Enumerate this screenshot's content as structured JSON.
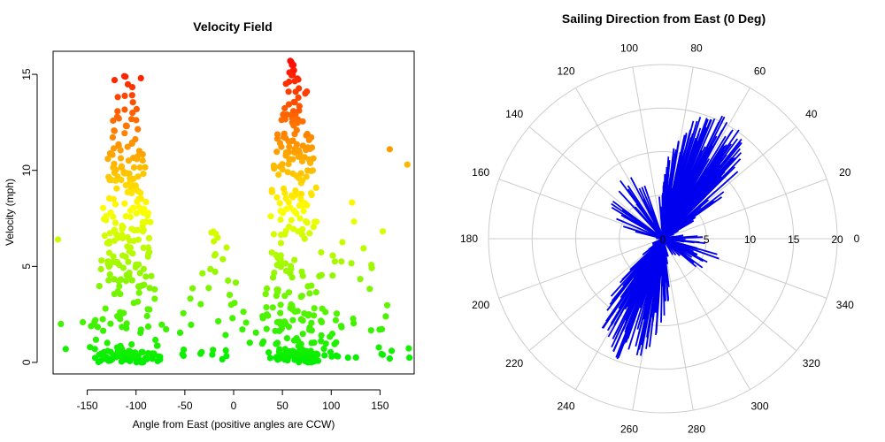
{
  "chart_data": [
    {
      "type": "scatter",
      "title": "Velocity Field",
      "xlabel": "Angle from East (positive angles are CCW)",
      "ylabel": "Velocity (mph)",
      "xlim": [
        -185,
        185
      ],
      "ylim": [
        -0.6,
        16.2
      ],
      "x_ticks": [
        -150,
        -100,
        -50,
        0,
        50,
        100,
        150
      ],
      "x_tick_labels": [
        "-150",
        "-100",
        "-50",
        "0",
        "50",
        "100",
        "150"
      ],
      "y_ticks": [
        0,
        5,
        10,
        15
      ],
      "y_tick_labels": [
        "0",
        "5",
        "10",
        "15"
      ],
      "color_scale": {
        "low": "#00ee00",
        "mid": "#ffff00",
        "high": "#ff0000",
        "min": 0,
        "max": 16
      },
      "clusters": [
        {
          "x_center": -110,
          "x_spread": 22,
          "v_max": 15,
          "count": 300
        },
        {
          "x_center": 62,
          "x_spread": 22,
          "v_max": 15.8,
          "count": 330
        },
        {
          "x_center": -20,
          "x_spread": 25,
          "v_max": 7,
          "count": 40
        },
        {
          "x_center": 130,
          "x_spread": 30,
          "v_max": 9,
          "count": 40
        }
      ],
      "notable_points": [
        {
          "x": 58,
          "y": 15.7
        },
        {
          "x": -112,
          "y": 14.9
        },
        {
          "x": -122,
          "y": 14.7
        },
        {
          "x": -95,
          "y": 14.8
        },
        {
          "x": 75,
          "y": 14.1
        },
        {
          "x": 160,
          "y": 11.1
        },
        {
          "x": 178,
          "y": 10.3
        },
        {
          "x": -177,
          "y": 2.0
        },
        {
          "x": -172,
          "y": 0.7
        },
        {
          "x": -180,
          "y": 6.4
        },
        {
          "x": 160,
          "y": 0.2
        },
        {
          "x": 162,
          "y": 0.6
        }
      ]
    },
    {
      "type": "polar-spikes",
      "title": "Sailing Direction from East (0 Deg)",
      "radial_max": 20,
      "radial_ticks": [
        0,
        5,
        10,
        15,
        20
      ],
      "radial_tick_labels": [
        "0",
        "5",
        "10",
        "15",
        "20"
      ],
      "angle_labels": [
        "0",
        "20",
        "40",
        "60",
        "80",
        "100",
        "120",
        "140",
        "160",
        "180",
        "200",
        "220",
        "240",
        "260",
        "280",
        "300",
        "320",
        "340"
      ],
      "angle_label_values": [
        0,
        20,
        40,
        60,
        80,
        100,
        120,
        140,
        160,
        180,
        200,
        220,
        240,
        260,
        280,
        300,
        320,
        340
      ],
      "series_color": "#0000ee",
      "direction_clusters": [
        {
          "angle_center": 62,
          "angle_spread": 25,
          "v_max": 15.8,
          "count": 330
        },
        {
          "angle_center": 250,
          "angle_spread": 22,
          "v_max": 15,
          "count": 300
        },
        {
          "angle_center": 340,
          "angle_spread": 25,
          "v_max": 7,
          "count": 40
        },
        {
          "angle_center": 130,
          "angle_spread": 30,
          "v_max": 9,
          "count": 40
        }
      ]
    }
  ]
}
